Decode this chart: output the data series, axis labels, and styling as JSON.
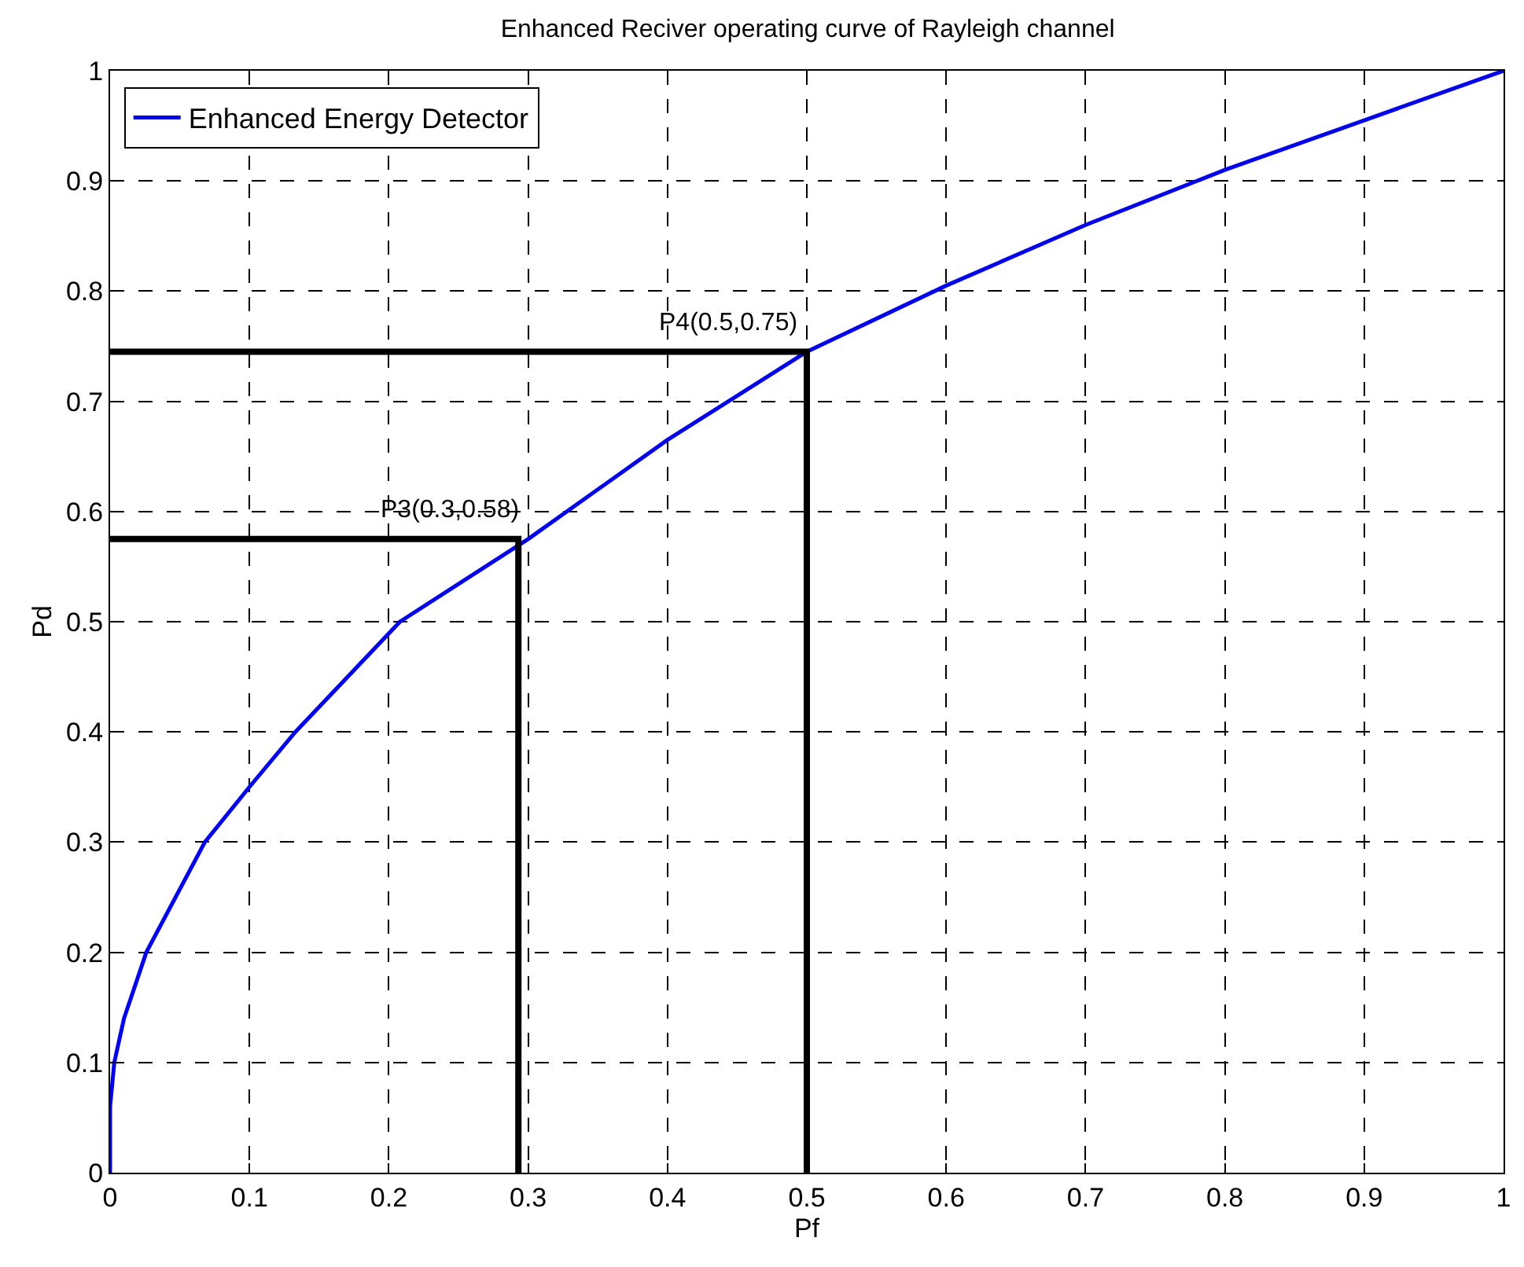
{
  "chart_data": {
    "type": "line",
    "title": "Enhanced Reciver operating curve of Rayleigh channel",
    "xlabel": "Pf",
    "ylabel": "Pd",
    "series": [
      {
        "name": "Enhanced Energy Detector",
        "color": "#0000ff",
        "x": [
          0,
          0,
          0.003,
          0.01,
          0.026,
          0.068,
          0.1,
          0.133,
          0.208,
          0.3,
          0.4,
          0.5,
          0.6,
          0.7,
          0.8,
          0.9,
          1
        ],
        "values": [
          0,
          0.06,
          0.1,
          0.14,
          0.2,
          0.3,
          0.35,
          0.4,
          0.5,
          0.575,
          0.665,
          0.745,
          0.805,
          0.86,
          0.91,
          0.955,
          1
        ]
      },
      {
        "color": "#000000",
        "x": [
          0,
          0.5,
          0.5
        ],
        "values": [
          0.745,
          0.745,
          0
        ]
      },
      {
        "color": "#000000",
        "x": [
          0,
          0.293,
          0.293
        ],
        "values": [
          0.575,
          0.575,
          0
        ]
      }
    ],
    "annotations": [
      {
        "text": "P4(0.5,0.75)",
        "x": 0.5,
        "y": 0.75
      },
      {
        "text": "P3(0.3,0.58)",
        "x": 0.3,
        "y": 0.58
      }
    ],
    "xlim": [
      0,
      1
    ],
    "ylim": [
      0,
      1
    ],
    "xticks": [
      0,
      0.1,
      0.2,
      0.3,
      0.4,
      0.5,
      0.6,
      0.7,
      0.8,
      0.9,
      1
    ],
    "yticks": [
      0,
      0.1,
      0.2,
      0.3,
      0.4,
      0.5,
      0.6,
      0.7,
      0.8,
      0.9,
      1
    ],
    "grid": true,
    "legend": "top left",
    "marker": "none",
    "line_style": "solid"
  }
}
